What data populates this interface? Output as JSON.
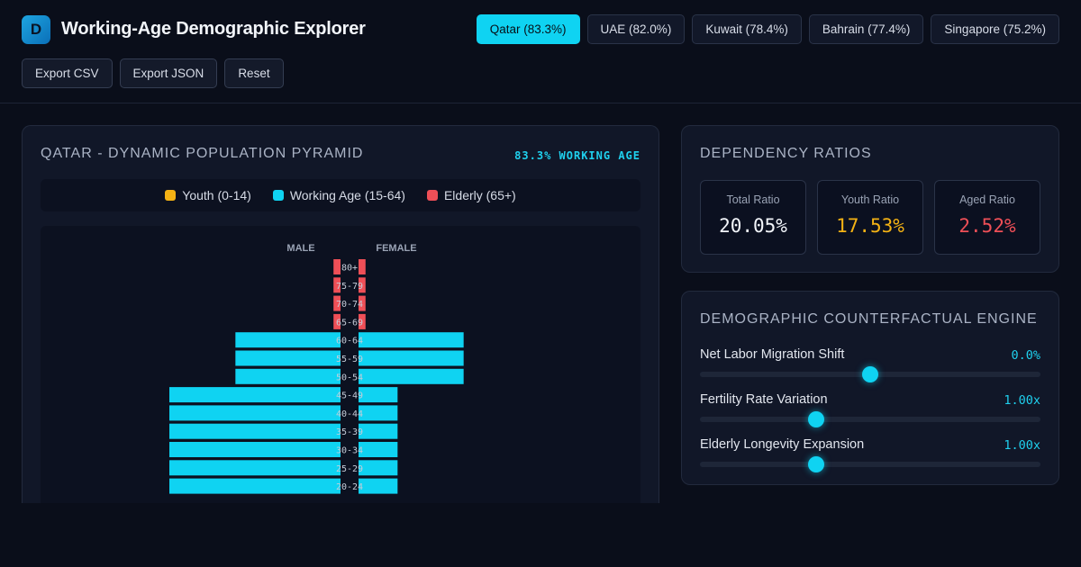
{
  "app": {
    "logo_letter": "D",
    "title": "Working-Age Demographic Explorer"
  },
  "country_tabs": [
    {
      "label": "Qatar (83.3%)",
      "active": true
    },
    {
      "label": "UAE (82.0%)",
      "active": false
    },
    {
      "label": "Kuwait (78.4%)",
      "active": false
    },
    {
      "label": "Bahrain (77.4%)",
      "active": false
    },
    {
      "label": "Singapore (75.2%)",
      "active": false
    }
  ],
  "actions": {
    "export_csv": "Export CSV",
    "export_json": "Export JSON",
    "reset": "Reset"
  },
  "pyramid": {
    "title": "QATAR - DYNAMIC POPULATION PYRAMID",
    "badge": "83.3% WORKING AGE",
    "legend": [
      {
        "label": "Youth (0-14)",
        "color": "#f4b214"
      },
      {
        "label": "Working Age (15-64)",
        "color": "#0fd3f2"
      },
      {
        "label": "Elderly (65+)",
        "color": "#ef4f57"
      }
    ]
  },
  "chart_data": {
    "type": "bar",
    "male_label": "MALE",
    "female_label": "FEMALE",
    "categories": [
      "80+",
      "75-79",
      "70-74",
      "65-69",
      "60-64",
      "55-59",
      "50-54",
      "45-49",
      "40-44",
      "35-39",
      "30-34",
      "25-29",
      "20-24"
    ],
    "groups": [
      "elderly",
      "elderly",
      "elderly",
      "elderly",
      "working",
      "working",
      "working",
      "working",
      "working",
      "working",
      "working",
      "working",
      "working"
    ],
    "series": [
      {
        "name": "MALE",
        "values": [
          0.7,
          0.7,
          0.7,
          0.7,
          10.5,
          10.5,
          10.5,
          17.1,
          17.1,
          17.1,
          17.1,
          17.1,
          17.1
        ]
      },
      {
        "name": "FEMALE",
        "values": [
          0.7,
          0.7,
          0.7,
          0.7,
          10.5,
          10.5,
          10.5,
          3.9,
          3.9,
          3.9,
          3.9,
          3.9,
          3.9
        ]
      }
    ],
    "colors": {
      "youth": "#f4b214",
      "working": "#0fd3f2",
      "elderly": "#ef4f57"
    }
  },
  "dependency": {
    "title": "DEPENDENCY RATIOS",
    "cards": [
      {
        "label": "Total Ratio",
        "value": "20.05%",
        "color": "#f2f5fa"
      },
      {
        "label": "Youth Ratio",
        "value": "17.53%",
        "color": "#f4b214"
      },
      {
        "label": "Aged Ratio",
        "value": "2.52%",
        "color": "#ef4f57"
      }
    ]
  },
  "counterfactual": {
    "title": "DEMOGRAPHIC COUNTERFACTUAL ENGINE",
    "sliders": [
      {
        "label": "Net Labor Migration Shift",
        "value": "0.0%",
        "position": 0.5
      },
      {
        "label": "Fertility Rate Variation",
        "value": "1.00x",
        "position": 0.34
      },
      {
        "label": "Elderly Longevity Expansion",
        "value": "1.00x",
        "position": 0.34
      }
    ]
  }
}
